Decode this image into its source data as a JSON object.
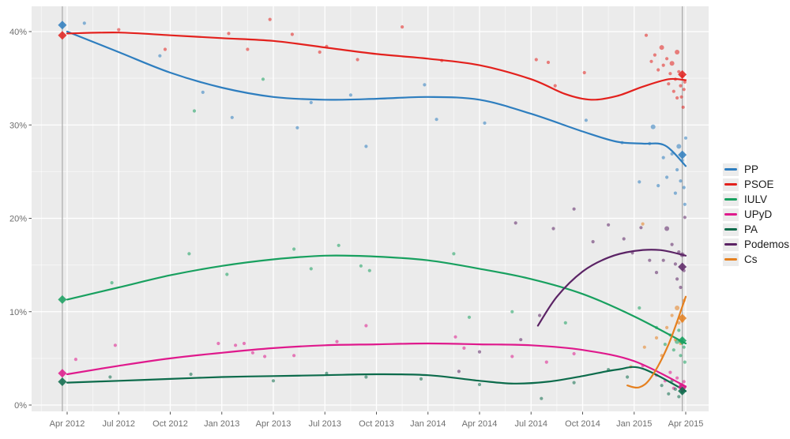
{
  "figure": {
    "background": "#FFFFFF",
    "panel_background": "#EBEBEB",
    "grid_major_color": "#FFFFFF",
    "grid_minor_color": "rgba(255,255,255,0.55)",
    "axis_text_color": "#6E6E6E",
    "tick_mark_color": "#555555",
    "election_line_color": "#A9A9A9"
  },
  "chart_data": {
    "type": "scatter",
    "title": "",
    "xlabel": "",
    "ylabel": "",
    "description_visible_only": "Poll scatter points with smoothed trend lines per party; diamond markers at the two election dates (vertical grey lines, Mar 2012 and Mar 2015).",
    "x_axis": {
      "unit": "months since Apr 2012",
      "range_months": [
        -2.1,
        37.3
      ],
      "ticks": [
        {
          "m": 0,
          "label": "Apr 2012"
        },
        {
          "m": 3,
          "label": "Jul 2012"
        },
        {
          "m": 6,
          "label": "Oct 2012"
        },
        {
          "m": 9,
          "label": "Jan 2013"
        },
        {
          "m": 12,
          "label": "Apr 2013"
        },
        {
          "m": 15,
          "label": "Jul 2013"
        },
        {
          "m": 18,
          "label": "Oct 2013"
        },
        {
          "m": 21,
          "label": "Jan 2014"
        },
        {
          "m": 24,
          "label": "Apr 2014"
        },
        {
          "m": 27,
          "label": "Jul 2014"
        },
        {
          "m": 30,
          "label": "Oct 2014"
        },
        {
          "m": 33,
          "label": "Jan 2015"
        },
        {
          "m": 36,
          "label": "Apr 2015"
        }
      ],
      "minor_ticks_every": 3
    },
    "y_axis": {
      "unit": "percent",
      "range": [
        -0.7,
        42.7
      ],
      "ticks": [
        {
          "v": 0,
          "label": "0%"
        },
        {
          "v": 10,
          "label": "10%"
        },
        {
          "v": 20,
          "label": "20%"
        },
        {
          "v": 30,
          "label": "30%"
        },
        {
          "v": 40,
          "label": "40%"
        }
      ],
      "minor": [
        5,
        15,
        25,
        35
      ]
    },
    "election_lines_months": [
      -0.28,
      35.8
    ],
    "legend_position": "right",
    "series": [
      {
        "name": "PP",
        "color": "#2E7EBF",
        "trend": [
          [
            0,
            40.0
          ],
          [
            3,
            37.8
          ],
          [
            6,
            35.6
          ],
          [
            9,
            34.0
          ],
          [
            12,
            33.0
          ],
          [
            15,
            32.7
          ],
          [
            18,
            32.8
          ],
          [
            21,
            33.0
          ],
          [
            24,
            32.7
          ],
          [
            27,
            31.2
          ],
          [
            30,
            29.3
          ],
          [
            32,
            28.2
          ],
          [
            33.5,
            28.0
          ],
          [
            34.8,
            27.8
          ],
          [
            36,
            25.6
          ]
        ],
        "polls": [
          [
            1.0,
            40.9
          ],
          [
            5.4,
            37.4
          ],
          [
            7.9,
            33.5
          ],
          [
            9.6,
            30.8
          ],
          [
            13.4,
            29.7
          ],
          [
            14.2,
            32.4
          ],
          [
            16.5,
            33.2
          ],
          [
            17.4,
            27.7
          ],
          [
            20.8,
            34.3
          ],
          [
            21.5,
            30.6
          ],
          [
            24.3,
            30.2
          ],
          [
            30.2,
            30.5
          ],
          [
            32.3,
            28.1
          ],
          [
            33.3,
            23.9
          ],
          [
            33.9,
            28.0
          ],
          [
            34.1,
            29.8,
            1
          ],
          [
            34.4,
            23.5
          ],
          [
            34.7,
            26.5
          ],
          [
            34.9,
            24.4
          ],
          [
            35.2,
            26.9
          ],
          [
            35.4,
            22.7
          ],
          [
            35.5,
            25.2
          ],
          [
            35.6,
            27.7,
            1
          ],
          [
            35.7,
            24.0
          ],
          [
            35.8,
            26.2
          ],
          [
            35.9,
            23.3
          ],
          [
            35.95,
            21.5
          ],
          [
            36.0,
            28.6
          ]
        ],
        "results": [
          [
            -0.28,
            40.7
          ],
          [
            35.8,
            26.8
          ]
        ]
      },
      {
        "name": "PSOE",
        "color": "#E3211D",
        "trend": [
          [
            0,
            39.8
          ],
          [
            3,
            39.9
          ],
          [
            6,
            39.6
          ],
          [
            9,
            39.3
          ],
          [
            12,
            39.0
          ],
          [
            15,
            38.3
          ],
          [
            18,
            37.6
          ],
          [
            21,
            37.1
          ],
          [
            24,
            36.4
          ],
          [
            27,
            34.9
          ],
          [
            29,
            33.3
          ],
          [
            30.5,
            32.7
          ],
          [
            32,
            33.1
          ],
          [
            33.5,
            34.1
          ],
          [
            35,
            34.9
          ],
          [
            36,
            34.8
          ]
        ],
        "polls": [
          [
            3.0,
            40.2
          ],
          [
            5.7,
            38.1
          ],
          [
            9.4,
            39.8
          ],
          [
            10.5,
            38.1
          ],
          [
            11.8,
            41.3
          ],
          [
            13.1,
            39.7
          ],
          [
            14.7,
            37.8
          ],
          [
            15.1,
            38.4
          ],
          [
            16.9,
            37.0
          ],
          [
            19.5,
            40.5
          ],
          [
            21.8,
            36.9
          ],
          [
            27.3,
            37.0
          ],
          [
            28.0,
            36.7
          ],
          [
            28.4,
            34.2
          ],
          [
            30.1,
            35.6
          ],
          [
            33.7,
            39.6
          ],
          [
            34.0,
            36.8
          ],
          [
            34.2,
            37.5
          ],
          [
            34.4,
            35.9
          ],
          [
            34.6,
            38.3,
            1
          ],
          [
            34.7,
            36.4
          ],
          [
            34.9,
            37.1
          ],
          [
            35.0,
            34.4
          ],
          [
            35.1,
            35.5
          ],
          [
            35.2,
            36.6,
            1
          ],
          [
            35.3,
            33.6
          ],
          [
            35.4,
            34.9
          ],
          [
            35.5,
            37.8,
            1
          ],
          [
            35.5,
            32.9
          ],
          [
            35.6,
            35.7
          ],
          [
            35.7,
            34.2
          ],
          [
            35.75,
            33.0
          ],
          [
            35.8,
            35.2
          ],
          [
            35.85,
            31.9
          ],
          [
            35.9,
            33.8
          ],
          [
            35.95,
            34.6
          ]
        ],
        "results": [
          [
            -0.28,
            39.6
          ],
          [
            35.8,
            35.4
          ]
        ]
      },
      {
        "name": "IULV",
        "color": "#18A05F",
        "trend": [
          [
            0,
            11.3
          ],
          [
            3,
            12.6
          ],
          [
            6,
            13.9
          ],
          [
            9,
            14.9
          ],
          [
            12,
            15.6
          ],
          [
            15,
            16.0
          ],
          [
            18,
            15.9
          ],
          [
            21,
            15.5
          ],
          [
            24,
            14.6
          ],
          [
            27,
            13.5
          ],
          [
            30,
            11.9
          ],
          [
            33,
            9.5
          ],
          [
            36,
            6.6
          ]
        ],
        "polls": [
          [
            2.6,
            13.1
          ],
          [
            7.1,
            16.2
          ],
          [
            7.4,
            31.5
          ],
          [
            9.3,
            14.0
          ],
          [
            11.4,
            34.9
          ],
          [
            13.2,
            16.7
          ],
          [
            14.2,
            14.6
          ],
          [
            15.8,
            17.1
          ],
          [
            17.1,
            14.9
          ],
          [
            17.6,
            14.4
          ],
          [
            22.5,
            16.2
          ],
          [
            23.4,
            9.4
          ],
          [
            25.9,
            10.0
          ],
          [
            29.0,
            8.8
          ],
          [
            33.3,
            10.4
          ],
          [
            34.3,
            8.3
          ],
          [
            34.8,
            6.5
          ],
          [
            35.1,
            7.5
          ],
          [
            35.3,
            5.9
          ],
          [
            35.5,
            6.8,
            1
          ],
          [
            35.6,
            8.0
          ],
          [
            35.7,
            5.3
          ],
          [
            35.8,
            7.0
          ],
          [
            35.9,
            6.2
          ],
          [
            35.95,
            4.6
          ]
        ],
        "results": [
          [
            -0.28,
            11.3
          ],
          [
            35.8,
            6.9
          ]
        ]
      },
      {
        "name": "UPyD",
        "color": "#DF198C",
        "trend": [
          [
            0,
            3.3
          ],
          [
            3,
            4.2
          ],
          [
            6,
            5.0
          ],
          [
            9,
            5.6
          ],
          [
            12,
            6.1
          ],
          [
            15,
            6.4
          ],
          [
            18,
            6.5
          ],
          [
            21,
            6.6
          ],
          [
            24,
            6.5
          ],
          [
            27,
            6.4
          ],
          [
            30,
            5.9
          ],
          [
            33,
            4.7
          ],
          [
            36,
            2.0
          ]
        ],
        "polls": [
          [
            0.5,
            4.9
          ],
          [
            2.8,
            6.4
          ],
          [
            8.8,
            6.6
          ],
          [
            9.8,
            6.4
          ],
          [
            10.3,
            6.6
          ],
          [
            10.8,
            5.6
          ],
          [
            11.5,
            5.2
          ],
          [
            13.2,
            5.3
          ],
          [
            15.7,
            6.8
          ],
          [
            17.4,
            8.5
          ],
          [
            22.6,
            7.3
          ],
          [
            23.1,
            6.1
          ],
          [
            25.9,
            5.2
          ],
          [
            27.9,
            4.6
          ],
          [
            29.5,
            5.5
          ],
          [
            33.5,
            4.2
          ],
          [
            34.3,
            3.2
          ],
          [
            34.8,
            2.6
          ],
          [
            35.1,
            3.5
          ],
          [
            35.3,
            1.8
          ],
          [
            35.5,
            2.9
          ],
          [
            35.7,
            2.2
          ],
          [
            35.8,
            1.5
          ],
          [
            35.9,
            2.5
          ]
        ],
        "results": [
          [
            -0.28,
            3.4
          ],
          [
            35.8,
            1.9
          ]
        ]
      },
      {
        "name": "PA",
        "color": "#0C6B4B",
        "trend": [
          [
            0,
            2.4
          ],
          [
            3,
            2.6
          ],
          [
            6,
            2.8
          ],
          [
            9,
            3.0
          ],
          [
            12,
            3.1
          ],
          [
            15,
            3.2
          ],
          [
            18,
            3.3
          ],
          [
            21,
            3.2
          ],
          [
            24,
            2.6
          ],
          [
            26,
            2.3
          ],
          [
            28,
            2.5
          ],
          [
            30,
            3.1
          ],
          [
            32,
            3.8
          ],
          [
            33.5,
            3.9
          ],
          [
            36,
            1.5
          ]
        ],
        "polls": [
          [
            2.5,
            3.0
          ],
          [
            7.2,
            3.3
          ],
          [
            12.0,
            2.6
          ],
          [
            15.1,
            3.4
          ],
          [
            17.4,
            3.0
          ],
          [
            20.6,
            2.8
          ],
          [
            24.0,
            2.2
          ],
          [
            27.6,
            0.7
          ],
          [
            29.5,
            2.4
          ],
          [
            31.5,
            3.8
          ],
          [
            32.6,
            3.0
          ],
          [
            34.6,
            2.1
          ],
          [
            35.0,
            1.2
          ],
          [
            35.2,
            2.6
          ],
          [
            35.4,
            1.7
          ],
          [
            35.6,
            0.9
          ],
          [
            35.7,
            2.0
          ],
          [
            35.8,
            1.4
          ],
          [
            35.9,
            1.8
          ]
        ],
        "results": [
          [
            -0.28,
            2.5
          ],
          [
            35.8,
            1.5
          ]
        ]
      },
      {
        "name": "Podemos",
        "color": "#5B2365",
        "trend": [
          [
            27.4,
            8.5
          ],
          [
            28.5,
            11.6
          ],
          [
            30,
            14.3
          ],
          [
            31.5,
            15.8
          ],
          [
            33,
            16.5
          ],
          [
            34.5,
            16.6
          ],
          [
            36,
            16.0
          ]
        ],
        "polls": [
          [
            22.8,
            3.6
          ],
          [
            24.0,
            5.7
          ],
          [
            26.1,
            19.5
          ],
          [
            26.4,
            7.0
          ],
          [
            27.5,
            9.6
          ],
          [
            28.3,
            18.9
          ],
          [
            29.5,
            21.0
          ],
          [
            30.6,
            17.5
          ],
          [
            31.5,
            19.3
          ],
          [
            32.4,
            17.8
          ],
          [
            32.9,
            16.3
          ],
          [
            33.4,
            19.0
          ],
          [
            33.9,
            15.5
          ],
          [
            34.3,
            14.2
          ],
          [
            34.7,
            15.5
          ],
          [
            34.9,
            18.9,
            1
          ],
          [
            35.2,
            17.2
          ],
          [
            35.4,
            15.1
          ],
          [
            35.5,
            13.5
          ],
          [
            35.6,
            16.4
          ],
          [
            35.7,
            12.6
          ],
          [
            35.8,
            16.1,
            1
          ],
          [
            35.9,
            14.4
          ],
          [
            35.95,
            20.1
          ]
        ],
        "results": [
          [
            35.8,
            14.8
          ]
        ]
      },
      {
        "name": "Cs",
        "color": "#E5801F",
        "trend": [
          [
            32.6,
            2.1
          ],
          [
            33.3,
            1.9
          ],
          [
            34,
            3.0
          ],
          [
            35,
            6.5
          ],
          [
            36,
            11.6
          ]
        ],
        "polls": [
          [
            32.8,
            4.1
          ],
          [
            33.5,
            19.4
          ],
          [
            33.6,
            6.2
          ],
          [
            34.3,
            7.2
          ],
          [
            34.6,
            5.3
          ],
          [
            34.9,
            8.3
          ],
          [
            35.2,
            9.6
          ],
          [
            35.4,
            7.0
          ],
          [
            35.5,
            10.4,
            1
          ],
          [
            35.6,
            8.8
          ],
          [
            35.7,
            6.6
          ],
          [
            35.8,
            9.0
          ],
          [
            35.9,
            11.2
          ]
        ],
        "results": [
          [
            35.8,
            9.3
          ]
        ]
      }
    ]
  }
}
